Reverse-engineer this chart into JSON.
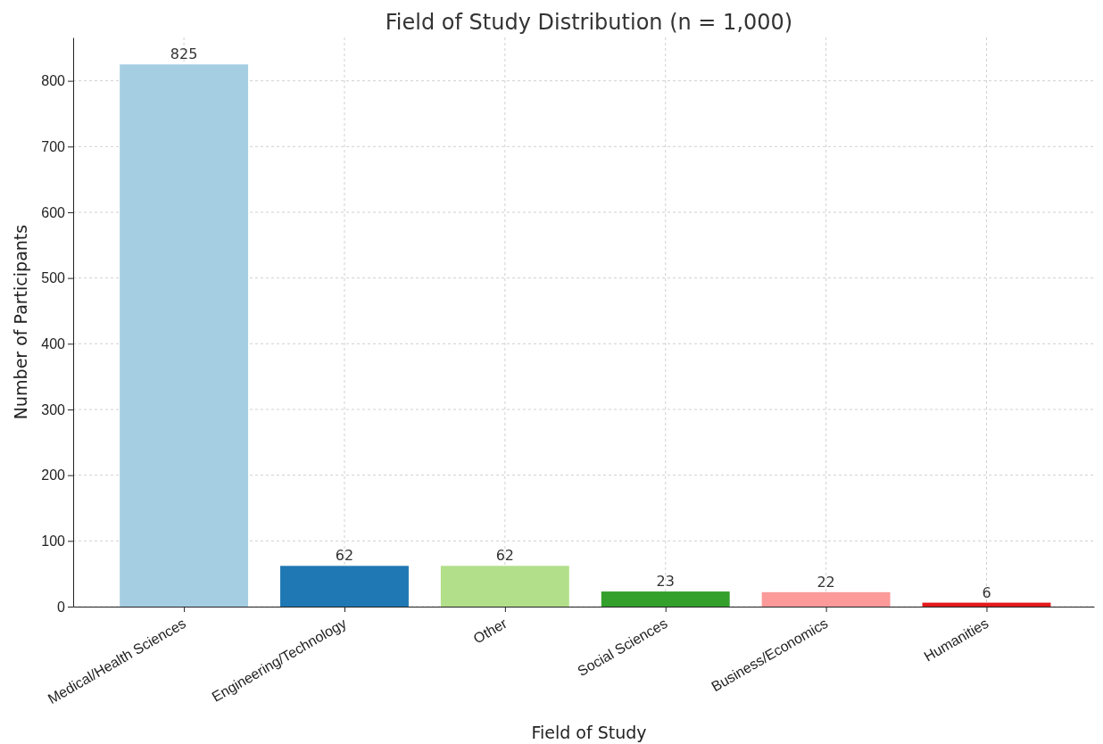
{
  "chart_data": {
    "type": "bar",
    "title": "Field of Study Distribution (n = 1,000)",
    "xlabel": "Field of Study",
    "ylabel": "Number of Participants",
    "categories": [
      "Medical/Health Sciences",
      "Engineering/Technology",
      "Other",
      "Social Sciences",
      "Business/Economics",
      "Humanities"
    ],
    "values": [
      825,
      62,
      62,
      23,
      22,
      6
    ],
    "colors": [
      "#a6cee3",
      "#1f78b4",
      "#b2df8a",
      "#33a02c",
      "#fb9a99",
      "#e31a1c"
    ],
    "ylim": [
      0,
      866
    ],
    "yticks": [
      0,
      100,
      200,
      300,
      400,
      500,
      600,
      700,
      800
    ],
    "grid": true,
    "data_labels": true
  }
}
